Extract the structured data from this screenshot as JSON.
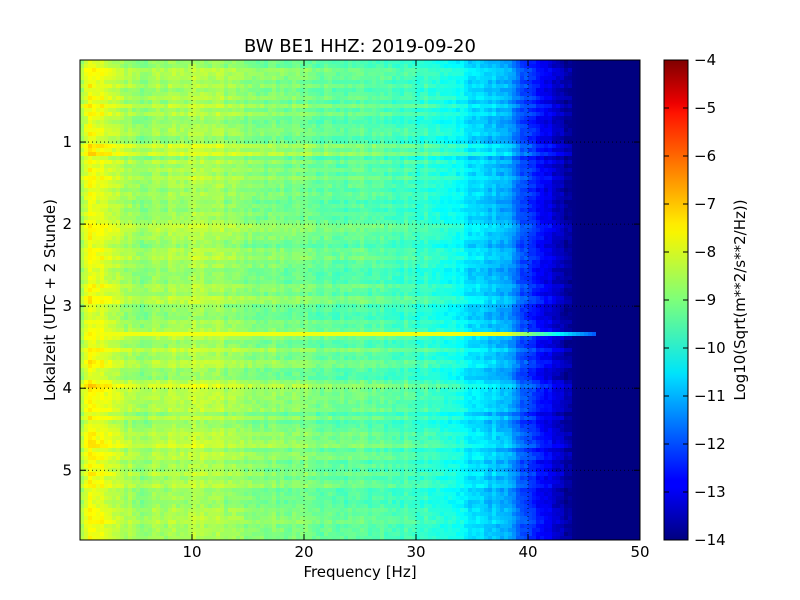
{
  "chart_data": {
    "type": "heatmap",
    "title": "BW BE1 HHZ: 2019-09-20",
    "xlabel": "Frequency [Hz]",
    "ylabel": "Lokalzeit (UTC + 2 Stunde)",
    "xlim": [
      0,
      50
    ],
    "ylim": [
      5.85,
      0
    ],
    "x_ticks": [
      10,
      20,
      30,
      40,
      50
    ],
    "y_ticks": [
      1,
      2,
      3,
      4,
      5
    ],
    "grid": true,
    "colorbar": {
      "label": "Log10(Sqrt(m**2/s**2/Hz))",
      "range": [
        -14,
        -4
      ],
      "ticks": [
        -4,
        -5,
        -6,
        -7,
        -8,
        -9,
        -10,
        -11,
        -12,
        -13,
        -14
      ],
      "colormap": "jet"
    },
    "spectral_profile": {
      "frequency_hz": [
        0,
        1,
        3,
        5,
        10,
        15,
        20,
        25,
        30,
        32,
        35,
        38,
        40,
        42,
        44,
        45,
        50
      ],
      "log10_amplitude": [
        -8.6,
        -7.8,
        -8.2,
        -8.8,
        -8.5,
        -8.8,
        -9.1,
        -9.3,
        -9.6,
        -9.8,
        -10.5,
        -11.0,
        -12.2,
        -13.0,
        -13.9,
        -14.0,
        -14.0
      ]
    },
    "notable_features": [
      {
        "label": "broadband line",
        "time_h": 3.33,
        "freq_range_hz": [
          1,
          46
        ],
        "log10_amplitude": -7.9
      }
    ]
  }
}
